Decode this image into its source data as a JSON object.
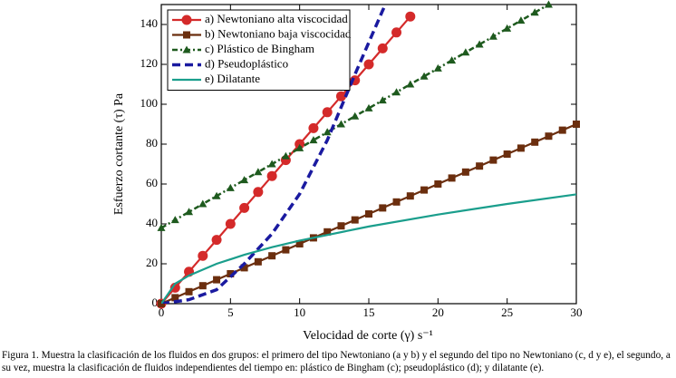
{
  "chart_data": {
    "type": "line",
    "ylabel": "Esfuerzo cortante (τ) Pa",
    "xlabel": "Velocidad de corte (γ) s⁻¹",
    "xlim": [
      0,
      30
    ],
    "xticks": [
      0,
      5,
      10,
      15,
      20,
      25,
      30
    ],
    "ylim": [
      0,
      150
    ],
    "yticks": [
      0,
      20,
      40,
      60,
      80,
      100,
      120,
      140
    ],
    "legend": "upper left",
    "series": [
      {
        "name": "a) Newtoniano alta viscocidad",
        "color": "#d42a2a",
        "linestyle": "solid",
        "marker": "circle",
        "x": [
          0,
          1,
          2,
          3,
          4,
          5,
          6,
          7,
          8,
          9,
          10,
          11,
          12,
          13,
          14,
          15,
          16,
          17,
          18
        ],
        "values": [
          0,
          8,
          16,
          24,
          32,
          40,
          48,
          56,
          64,
          72,
          80,
          88,
          96,
          104,
          112,
          120,
          128,
          136,
          144
        ]
      },
      {
        "name": "b) Newtoniano baja viscocidad",
        "color": "#6b2e0e",
        "linestyle": "solid",
        "marker": "square",
        "x": [
          0,
          1,
          2,
          3,
          4,
          5,
          6,
          7,
          8,
          9,
          10,
          11,
          12,
          13,
          14,
          15,
          16,
          17,
          18,
          19,
          20,
          21,
          22,
          23,
          24,
          25,
          26,
          27,
          28,
          29,
          30
        ],
        "values": [
          0,
          3,
          6,
          9,
          12,
          15,
          18,
          21,
          24,
          27,
          30,
          33,
          36,
          39,
          42,
          45,
          48,
          51,
          54,
          57,
          60,
          63,
          66,
          69,
          72,
          75,
          78,
          81,
          84,
          87,
          90
        ]
      },
      {
        "name": "c) Plástico de Bingham",
        "color": "#1e5a1e",
        "linestyle": "dashdot",
        "marker": "triangle",
        "x": [
          0,
          1,
          2,
          3,
          4,
          5,
          6,
          7,
          8,
          9,
          10,
          11,
          12,
          13,
          14,
          15,
          16,
          17,
          18,
          19,
          20,
          21,
          22,
          23,
          24,
          25,
          26,
          27,
          28
        ],
        "values": [
          38,
          42,
          46,
          50,
          54,
          58,
          62,
          66,
          70,
          74,
          78,
          82,
          86,
          90,
          94,
          98,
          102,
          106,
          110,
          114,
          118,
          122,
          126,
          130,
          134,
          138,
          142,
          146,
          150
        ]
      },
      {
        "name": "d) Pseudoplástico",
        "color": "#1a1aa0",
        "linestyle": "dashed",
        "marker": "none",
        "x": [
          0,
          2,
          4,
          6,
          8,
          10,
          12,
          14,
          16,
          16.2
        ],
        "values": [
          0,
          2,
          7,
          20,
          35,
          55,
          82,
          115,
          147,
          150
        ]
      },
      {
        "name": "e) Dilatante",
        "color": "#1a9e8c",
        "linestyle": "solid",
        "marker": "none",
        "x": [
          0,
          1,
          2,
          4,
          6,
          8,
          10,
          15,
          20,
          25,
          30
        ],
        "values": [
          0,
          10,
          14.1,
          20,
          24.5,
          28.3,
          31.6,
          38.7,
          44.7,
          50,
          54.8
        ]
      }
    ]
  },
  "caption": "Figura 1. Muestra la clasificación de los fluidos en dos grupos: el primero del tipo Newtoniano (a y b) y el segundo del tipo no Newtoniano (c, d y e), el segundo, a su vez, muestra la clasificación de fluidos independientes del tiempo en: plástico de Bingham (c); pseudoplástico (d); y dilatante (e)."
}
